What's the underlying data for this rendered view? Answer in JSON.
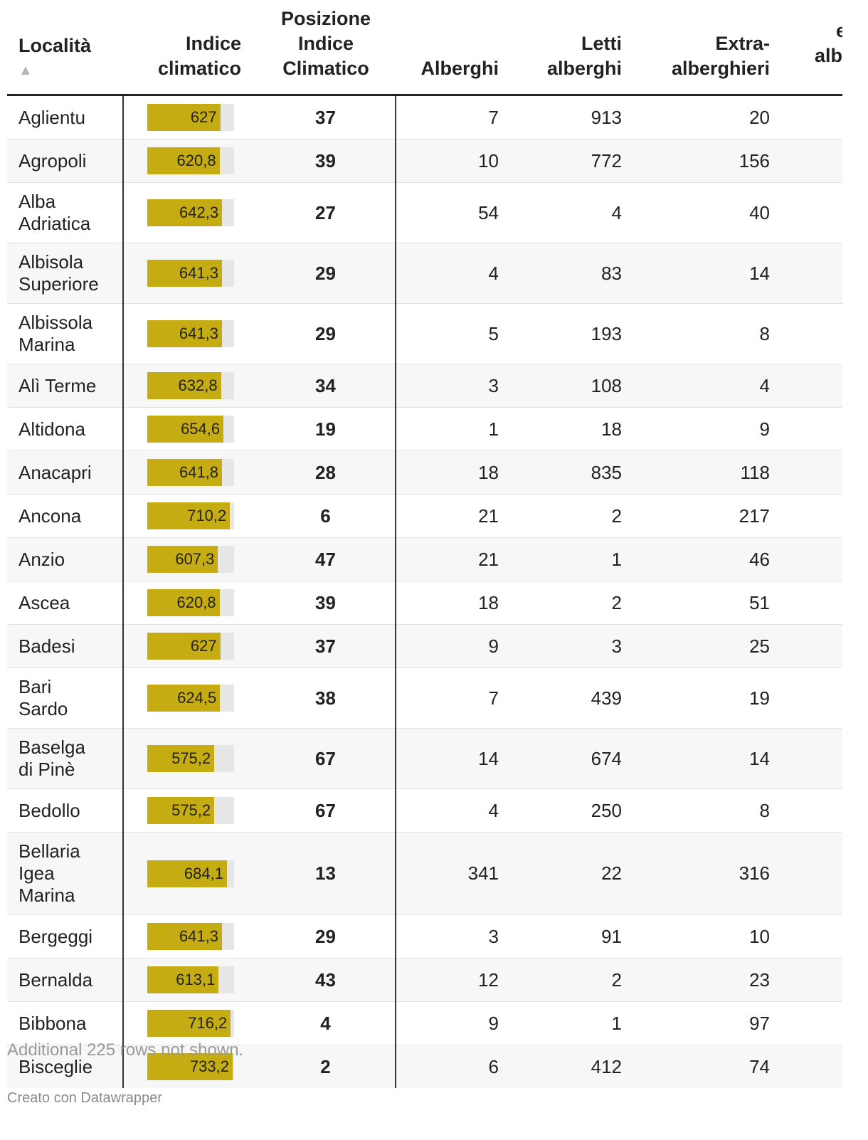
{
  "table": {
    "headers": [
      "Località",
      "Indice climatico",
      "Posizione Indice Climatico",
      "Alberghi",
      "Letti alberghi",
      "Extra-alberghieri"
    ],
    "cut_header": [
      "e",
      "alb"
    ],
    "sort_indicator": "▲",
    "bar_color": "#c4ac12",
    "rows": [
      [
        "Aglientu",
        627,
        37,
        7,
        913,
        20
      ],
      [
        "Agropoli",
        620.8,
        39,
        10,
        772,
        156
      ],
      [
        "Alba Adriatica",
        642.3,
        27,
        54,
        4,
        40
      ],
      [
        "Albisola Superiore",
        641.3,
        29,
        4,
        83,
        14
      ],
      [
        "Albissola Marina",
        641.3,
        29,
        5,
        193,
        8
      ],
      [
        "Alì Terme",
        632.8,
        34,
        3,
        108,
        4
      ],
      [
        "Altidona",
        654.6,
        19,
        1,
        18,
        9
      ],
      [
        "Anacapri",
        641.8,
        28,
        18,
        835,
        118
      ],
      [
        "Ancona",
        710.2,
        6,
        21,
        2,
        217
      ],
      [
        "Anzio",
        607.3,
        47,
        21,
        1,
        46
      ],
      [
        "Ascea",
        620.8,
        39,
        18,
        2,
        51
      ],
      [
        "Badesi",
        627,
        37,
        9,
        3,
        25
      ],
      [
        "Bari Sardo",
        624.5,
        38,
        7,
        439,
        19
      ],
      [
        "Baselga di Pinè",
        575.2,
        67,
        14,
        674,
        14
      ],
      [
        "Bedollo",
        575.2,
        67,
        4,
        250,
        8
      ],
      [
        "Bellaria Igea Marina",
        684.1,
        13,
        341,
        22,
        316
      ],
      [
        "Bergeggi",
        641.3,
        29,
        3,
        91,
        10
      ],
      [
        "Bernalda",
        613.1,
        43,
        12,
        2,
        23
      ],
      [
        "Bibbona",
        716.2,
        4,
        9,
        1,
        97
      ],
      [
        "Bisceglie",
        733.2,
        2,
        6,
        412,
        74
      ]
    ],
    "value_labels": [
      "627",
      "620,8",
      "642,3",
      "641,3",
      "641,3",
      "632,8",
      "654,6",
      "641,8",
      "710,2",
      "607,3",
      "620,8",
      "627",
      "624,5",
      "575,2",
      "575,2",
      "684,1",
      "641,3",
      "613,1",
      "716,2",
      "733,2"
    ]
  },
  "footer": {
    "note": "Additional 225 rows not shown.",
    "credit": "Creato con Datawrapper"
  }
}
